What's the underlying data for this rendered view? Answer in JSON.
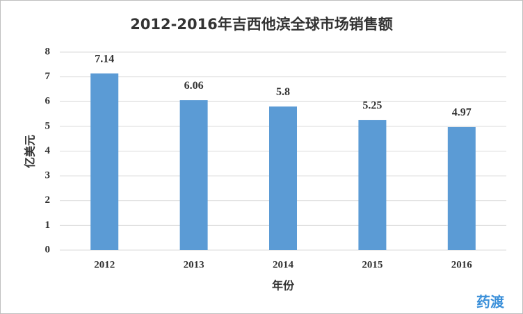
{
  "chart_data": {
    "type": "bar",
    "title": "2012-2016年吉西他滨全球市场销售额",
    "y_label": "亿美元",
    "x_label": "年份",
    "categories": [
      "2012",
      "2013",
      "2014",
      "2015",
      "2016"
    ],
    "values": [
      7.14,
      6.06,
      5.8,
      5.25,
      4.97
    ],
    "color": "#5b9bd5",
    "ylim": [
      0,
      8
    ],
    "yticks": [
      0,
      1,
      2,
      3,
      4,
      5,
      6,
      7,
      8
    ],
    "grid": true,
    "watermark": "药渡"
  }
}
